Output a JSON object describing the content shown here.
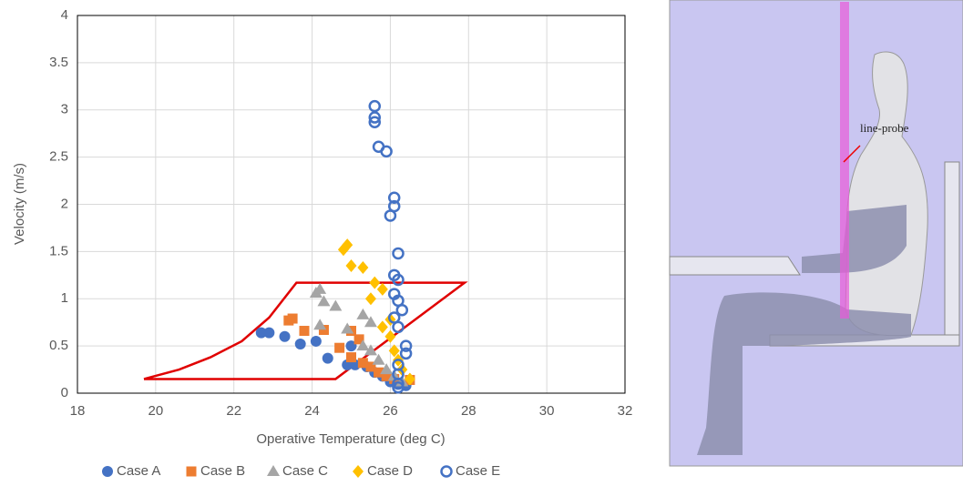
{
  "chart_data": {
    "type": "scatter",
    "xlabel": "Operative Temperature (deg C)",
    "ylabel": "Velocity (m/s)",
    "xlim": [
      18,
      32
    ],
    "xticks": [
      18,
      20,
      22,
      24,
      26,
      28,
      30,
      32
    ],
    "ylim": [
      0,
      4
    ],
    "yticks": [
      0,
      0.5,
      1,
      1.5,
      2,
      2.5,
      3,
      3.5,
      4
    ],
    "grid": true,
    "legend": "bottom",
    "series": [
      {
        "name": "Case A",
        "color": "#4472c4",
        "marker": "circle",
        "x": [
          22.7,
          22.9,
          23.3,
          23.7,
          24.1,
          24.4,
          24.9,
          25.1,
          25.0,
          25.4,
          25.6,
          25.8,
          26.0,
          26.2,
          26.4
        ],
        "values": [
          0.64,
          0.64,
          0.6,
          0.52,
          0.55,
          0.37,
          0.3,
          0.3,
          0.5,
          0.28,
          0.22,
          0.18,
          0.12,
          0.1,
          0.08
        ]
      },
      {
        "name": "Case B",
        "color": "#ed7d31",
        "marker": "square",
        "x": [
          23.4,
          23.5,
          23.8,
          24.3,
          24.7,
          25.0,
          25.2,
          25.0,
          25.3,
          25.5,
          25.7,
          25.9,
          26.1,
          26.5
        ],
        "values": [
          0.77,
          0.79,
          0.66,
          0.67,
          0.48,
          0.66,
          0.57,
          0.38,
          0.32,
          0.28,
          0.22,
          0.18,
          0.15,
          0.14
        ]
      },
      {
        "name": "Case C",
        "color": "#a5a5a5",
        "marker": "triangle",
        "x": [
          24.1,
          24.2,
          24.3,
          24.6,
          24.2,
          24.9,
          25.3,
          25.5,
          25.3,
          25.5,
          25.7,
          25.9,
          26.1,
          26.3
        ],
        "values": [
          1.06,
          1.1,
          0.97,
          0.92,
          0.72,
          0.68,
          0.83,
          0.75,
          0.5,
          0.45,
          0.35,
          0.25,
          0.18,
          0.12
        ]
      },
      {
        "name": "Case D",
        "color": "#ffc000",
        "marker": "diamond",
        "x": [
          24.8,
          24.9,
          25.0,
          25.3,
          25.5,
          25.6,
          25.8,
          26.0,
          25.8,
          26.0,
          26.1,
          26.2,
          26.3,
          26.5
        ],
        "values": [
          1.52,
          1.57,
          1.35,
          1.33,
          1.0,
          1.17,
          1.1,
          0.78,
          0.7,
          0.6,
          0.45,
          0.35,
          0.25,
          0.15
        ]
      },
      {
        "name": "Case E",
        "color": "#4472c4",
        "marker": "open-circle",
        "x": [
          25.6,
          25.6,
          25.6,
          25.7,
          25.9,
          26.1,
          26.1,
          26.0,
          26.2,
          26.1,
          26.2,
          26.1,
          26.2,
          26.3,
          26.1,
          26.2,
          26.4,
          26.4,
          26.2,
          26.2,
          26.2,
          26.2
        ],
        "values": [
          3.04,
          2.92,
          2.87,
          2.61,
          2.56,
          2.07,
          1.98,
          1.88,
          1.48,
          1.25,
          1.2,
          1.05,
          0.98,
          0.88,
          0.8,
          0.7,
          0.5,
          0.42,
          0.3,
          0.2,
          0.1,
          0.06
        ]
      }
    ],
    "comfort_zone": {
      "color": "#e00000",
      "x": [
        19.7,
        24.6,
        27.9,
        23.6,
        22.9,
        22.2,
        21.4,
        20.6,
        19.7
      ],
      "values": [
        0.15,
        0.15,
        1.17,
        1.17,
        0.8,
        0.55,
        0.38,
        0.25,
        0.15
      ]
    }
  },
  "image": {
    "label": "line-probe"
  }
}
